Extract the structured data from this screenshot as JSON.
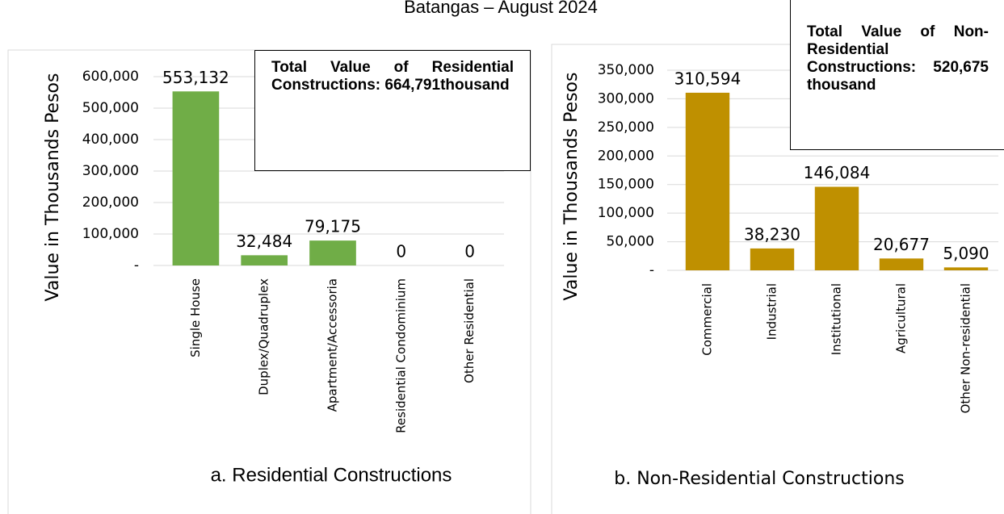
{
  "title": "Batangas – August 2024",
  "chart_data": [
    {
      "type": "bar",
      "title": "a. Residential Constructions",
      "y_label": "Value in Thousands Pesos",
      "categories": [
        "Single House",
        "Duplex/Quadruplex",
        "Apartment/Accessoria",
        "Residential Condominium",
        "Other Residential"
      ],
      "values": [
        553132,
        32484,
        79175,
        0,
        0
      ],
      "value_labels": [
        "553,132",
        "32,484",
        "79,175",
        "0",
        "0"
      ],
      "color": "#70ad47",
      "ylim": [
        0,
        600000
      ],
      "yticks": [
        {
          "value": 0,
          "label": "-"
        },
        {
          "value": 100000,
          "label": "100,000"
        },
        {
          "value": 200000,
          "label": "200,000"
        },
        {
          "value": 300000,
          "label": "300,000"
        },
        {
          "value": 400000,
          "label": "400,000"
        },
        {
          "value": 500000,
          "label": "500,000"
        },
        {
          "value": 600000,
          "label": "600,000"
        }
      ],
      "grid": true,
      "annotation": "Total Value of Residential Constructions: 664,791thousand"
    },
    {
      "type": "bar",
      "title": "b. Non-Residential Constructions",
      "y_label": "Value in Thousands Pesos",
      "categories": [
        "Commercial",
        "Industrial",
        "Institutional",
        "Agricultural",
        "Other Non-residential"
      ],
      "values": [
        310594,
        38230,
        146084,
        20677,
        5090
      ],
      "value_labels": [
        "310,594",
        "38,230",
        "146,084",
        "20,677",
        "5,090"
      ],
      "color": "#bf9000",
      "ylim": [
        0,
        350000
      ],
      "yticks": [
        {
          "value": 0,
          "label": "-"
        },
        {
          "value": 50000,
          "label": "50,000"
        },
        {
          "value": 100000,
          "label": "100,000"
        },
        {
          "value": 150000,
          "label": "150,000"
        },
        {
          "value": 200000,
          "label": "200,000"
        },
        {
          "value": 250000,
          "label": "250,000"
        },
        {
          "value": 300000,
          "label": "300,000"
        },
        {
          "value": 350000,
          "label": "350,000"
        }
      ],
      "grid": true,
      "annotation": "Total Value of Non- Residential Constructions: 520,675 thousand"
    }
  ]
}
